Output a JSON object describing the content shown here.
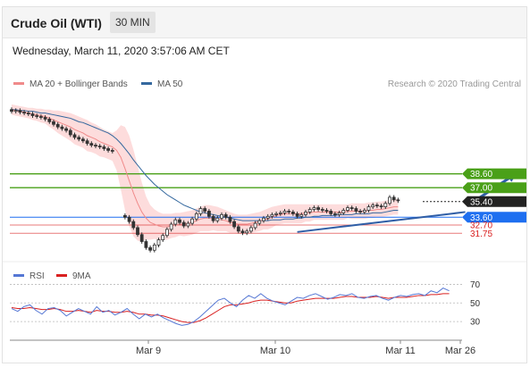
{
  "header": {
    "title": "Crude Oil (WTI)",
    "timeframe": "30 MIN",
    "datetime": "Wednesday, March 11, 2020 3:57:06 AM CET"
  },
  "colors": {
    "ma20": "#f08a8a",
    "ma50": "#34689e",
    "bollinger_band": "#fdd6d6",
    "up_candle": "#ffffff",
    "down_candle": "#333333",
    "resistance": "#4aa018",
    "support": "#1e6ff0",
    "pivot": "#222222",
    "support_weak": "#d92020",
    "rsi": "#5577d4",
    "rsi_ma": "#d92020",
    "arrow": "#2f5ea6"
  },
  "chart_data": [
    {
      "type": "candlestick",
      "legend": [
        {
          "name": "MA 20 + Bollinger Bands",
          "color": "#f08a8a"
        },
        {
          "name": "MA 50",
          "color": "#34689e"
        }
      ],
      "credit": "Research © 2020 Trading Central",
      "x_ticks": [
        "Mar 9",
        "Mar 10",
        "Mar 11",
        "Mar 26"
      ],
      "ylim": [
        29,
        47
      ],
      "levels": [
        {
          "value": 38.6,
          "label": "38.60",
          "kind": "resistance"
        },
        {
          "value": 37.0,
          "label": "37.00",
          "kind": "resistance"
        },
        {
          "value": 35.4,
          "label": "35.40",
          "kind": "pivot"
        },
        {
          "value": 33.6,
          "label": "33.60",
          "kind": "support"
        },
        {
          "value": 32.7,
          "label": "32.70",
          "kind": "support_weak"
        },
        {
          "value": 31.75,
          "label": "31.75",
          "kind": "support_weak"
        }
      ],
      "trendline": {
        "x": [
          68,
          108
        ],
        "y": [
          31.9,
          34.2
        ]
      },
      "forecast_arrow": {
        "x": [
          110,
          120
        ],
        "y": [
          35.4,
          38.6
        ]
      },
      "price_close": [
        45.8,
        45.9,
        45.7,
        45.6,
        45.5,
        45.3,
        45.2,
        45.1,
        44.9,
        44.6,
        44.3,
        44.0,
        43.8,
        43.6,
        43.1,
        42.8,
        42.6,
        42.4,
        42.1,
        41.9,
        41.8,
        41.7,
        41.5,
        41.3,
        41.2,
        null,
        null,
        33.6,
        33.1,
        32.4,
        31.6,
        30.8,
        30.1,
        29.8,
        30.4,
        31.0,
        31.5,
        32.2,
        32.8,
        33.3,
        33.0,
        32.6,
        32.9,
        33.4,
        34.0,
        34.6,
        34.3,
        33.7,
        33.2,
        33.5,
        33.9,
        33.6,
        33.1,
        32.5,
        32.0,
        31.8,
        32.0,
        32.4,
        32.9,
        33.2,
        33.5,
        33.7,
        33.9,
        34.0,
        34.1,
        34.3,
        34.2,
        34.0,
        33.7,
        33.9,
        34.2,
        34.5,
        34.7,
        34.5,
        34.4,
        34.3,
        34.0,
        33.9,
        34.1,
        34.4,
        34.7,
        34.6,
        34.3,
        34.2,
        34.4,
        34.8,
        35.0,
        34.9,
        34.8,
        35.2,
        35.9,
        35.6,
        35.5
      ],
      "ma20": [
        46.0,
        45.9,
        45.8,
        45.7,
        45.6,
        45.5,
        45.4,
        45.3,
        45.2,
        45.0,
        44.8,
        44.6,
        44.4,
        44.2,
        44.0,
        43.7,
        43.5,
        43.3,
        43.0,
        42.8,
        42.6,
        42.3,
        42.1,
        41.9,
        41.7,
        41.3,
        40.5,
        39.2,
        37.8,
        36.4,
        35.2,
        34.2,
        33.5,
        33.0,
        32.8,
        32.6,
        32.5,
        32.5,
        32.6,
        32.7,
        32.8,
        32.8,
        32.9,
        33.0,
        33.2,
        33.4,
        33.5,
        33.5,
        33.5,
        33.4,
        33.3,
        33.2,
        33.0,
        32.9,
        32.8,
        32.8,
        32.8,
        32.9,
        33.0,
        33.1,
        33.3,
        33.4,
        33.6,
        33.8,
        33.9,
        34.0,
        34.0,
        34.0,
        34.0,
        34.0,
        34.1,
        34.1,
        34.2,
        34.2,
        34.2,
        34.2,
        34.2,
        34.2,
        34.2,
        34.2,
        34.3,
        34.3,
        34.3,
        34.3,
        34.3,
        34.4,
        34.4,
        34.5,
        34.5,
        34.6,
        34.7,
        34.8,
        34.8
      ],
      "bb_upper": [
        46.6,
        46.5,
        46.4,
        46.3,
        46.2,
        46.2,
        46.1,
        46.1,
        46.0,
        46.0,
        45.9,
        45.9,
        45.8,
        45.7,
        45.6,
        45.4,
        45.2,
        45.0,
        44.8,
        44.5,
        44.3,
        44.0,
        43.7,
        43.5,
        43.3,
        43.6,
        44.2,
        44.0,
        43.0,
        41.4,
        39.5,
        37.6,
        36.0,
        35.0,
        34.5,
        34.2,
        34.0,
        34.0,
        34.0,
        34.1,
        34.1,
        34.2,
        34.3,
        34.4,
        34.6,
        34.8,
        35.0,
        35.0,
        34.9,
        34.8,
        34.6,
        34.4,
        34.2,
        34.0,
        33.9,
        33.9,
        33.9,
        34.0,
        34.1,
        34.2,
        34.4,
        34.6,
        34.8,
        34.9,
        35.0,
        35.1,
        35.1,
        35.1,
        35.1,
        35.1,
        35.1,
        35.1,
        35.1,
        35.1,
        35.1,
        35.1,
        35.1,
        35.1,
        35.1,
        35.1,
        35.1,
        35.2,
        35.2,
        35.2,
        35.2,
        35.3,
        35.3,
        35.4,
        35.4,
        35.5,
        35.6,
        35.7,
        35.7
      ],
      "bb_lower": [
        45.4,
        45.3,
        45.2,
        45.1,
        45.0,
        44.8,
        44.7,
        44.5,
        44.4,
        44.0,
        43.7,
        43.3,
        43.0,
        42.7,
        42.4,
        42.0,
        41.8,
        41.6,
        41.2,
        41.1,
        40.9,
        40.6,
        40.5,
        40.3,
        40.1,
        39.0,
        36.8,
        34.4,
        32.6,
        31.4,
        30.9,
        30.8,
        31.0,
        31.0,
        31.1,
        31.0,
        31.0,
        31.0,
        31.2,
        31.3,
        31.5,
        31.4,
        31.5,
        31.6,
        31.8,
        32.0,
        32.0,
        32.0,
        32.1,
        32.0,
        32.0,
        32.0,
        31.8,
        31.8,
        31.7,
        31.7,
        31.7,
        31.8,
        31.9,
        32.0,
        32.2,
        32.2,
        32.4,
        32.7,
        32.8,
        32.9,
        32.9,
        32.9,
        32.9,
        32.9,
        33.1,
        33.1,
        33.3,
        33.3,
        33.3,
        33.3,
        33.3,
        33.3,
        33.3,
        33.3,
        33.5,
        33.4,
        33.4,
        33.4,
        33.4,
        33.5,
        33.5,
        33.6,
        33.6,
        33.7,
        33.8,
        33.9,
        33.9
      ],
      "ma50": [
        46.0,
        46.0,
        45.9,
        45.9,
        45.8,
        45.8,
        45.7,
        45.6,
        45.6,
        45.5,
        45.4,
        45.3,
        45.2,
        45.1,
        45.0,
        44.8,
        44.6,
        44.5,
        44.3,
        44.1,
        43.9,
        43.7,
        43.5,
        43.3,
        43.0,
        42.6,
        42.1,
        41.5,
        40.9,
        40.2,
        39.6,
        39.0,
        38.4,
        37.9,
        37.4,
        37.0,
        36.6,
        36.2,
        35.9,
        35.6,
        35.3,
        35.0,
        34.8,
        34.6,
        34.4,
        34.2,
        34.1,
        34.0,
        33.9,
        33.8,
        33.7,
        33.6,
        33.5,
        33.4,
        33.3,
        33.2,
        33.2,
        33.2,
        33.2,
        33.2,
        33.2,
        33.2,
        33.3,
        33.3,
        33.3,
        33.4,
        33.4,
        33.4,
        33.5,
        33.5,
        33.6,
        33.6,
        33.7,
        33.7,
        33.8,
        33.8,
        33.8,
        33.8,
        33.9,
        33.9,
        33.9,
        33.9,
        34.0,
        34.0,
        34.0,
        34.0,
        34.1,
        34.1,
        34.1,
        34.2,
        34.3,
        34.4,
        34.4
      ]
    },
    {
      "type": "line",
      "legend": [
        {
          "name": "RSI",
          "color": "#5577d4"
        },
        {
          "name": "9MA",
          "color": "#d92020"
        }
      ],
      "y_ticks": [
        70,
        50,
        30
      ],
      "ylim": [
        10,
        80
      ],
      "x_ticks": [
        "Mar 9",
        "Mar 10",
        "Mar 11",
        "Mar 26"
      ],
      "series": [
        {
          "name": "RSI",
          "values": [
            44,
            41,
            46,
            48,
            42,
            38,
            44,
            45,
            42,
            36,
            40,
            44,
            41,
            38,
            46,
            40,
            42,
            37,
            40,
            44,
            38,
            33,
            38,
            35,
            38,
            34,
            31,
            28,
            26,
            27,
            30,
            35,
            41,
            47,
            53,
            55,
            50,
            46,
            53,
            58,
            55,
            60,
            55,
            52,
            50,
            48,
            52,
            56,
            55,
            58,
            60,
            57,
            54,
            56,
            59,
            58,
            60,
            56,
            55,
            57,
            58,
            55,
            53,
            56,
            58,
            57,
            59,
            60,
            58,
            63,
            61,
            66,
            63
          ]
        },
        {
          "name": "9MA",
          "values": [
            45,
            44,
            44,
            45,
            44,
            43,
            43,
            44,
            43,
            41,
            41,
            42,
            41,
            40,
            42,
            41,
            41,
            40,
            40,
            41,
            40,
            38,
            38,
            37,
            37,
            36,
            34,
            32,
            30,
            29,
            29,
            31,
            34,
            38,
            42,
            46,
            48,
            48,
            49,
            50,
            52,
            53,
            53,
            52,
            51,
            50,
            50,
            52,
            53,
            54,
            55,
            55,
            55,
            55,
            56,
            57,
            57,
            56,
            56,
            56,
            57,
            56,
            55,
            56,
            56,
            56,
            57,
            58,
            58,
            59,
            59,
            60,
            60
          ]
        }
      ]
    }
  ]
}
